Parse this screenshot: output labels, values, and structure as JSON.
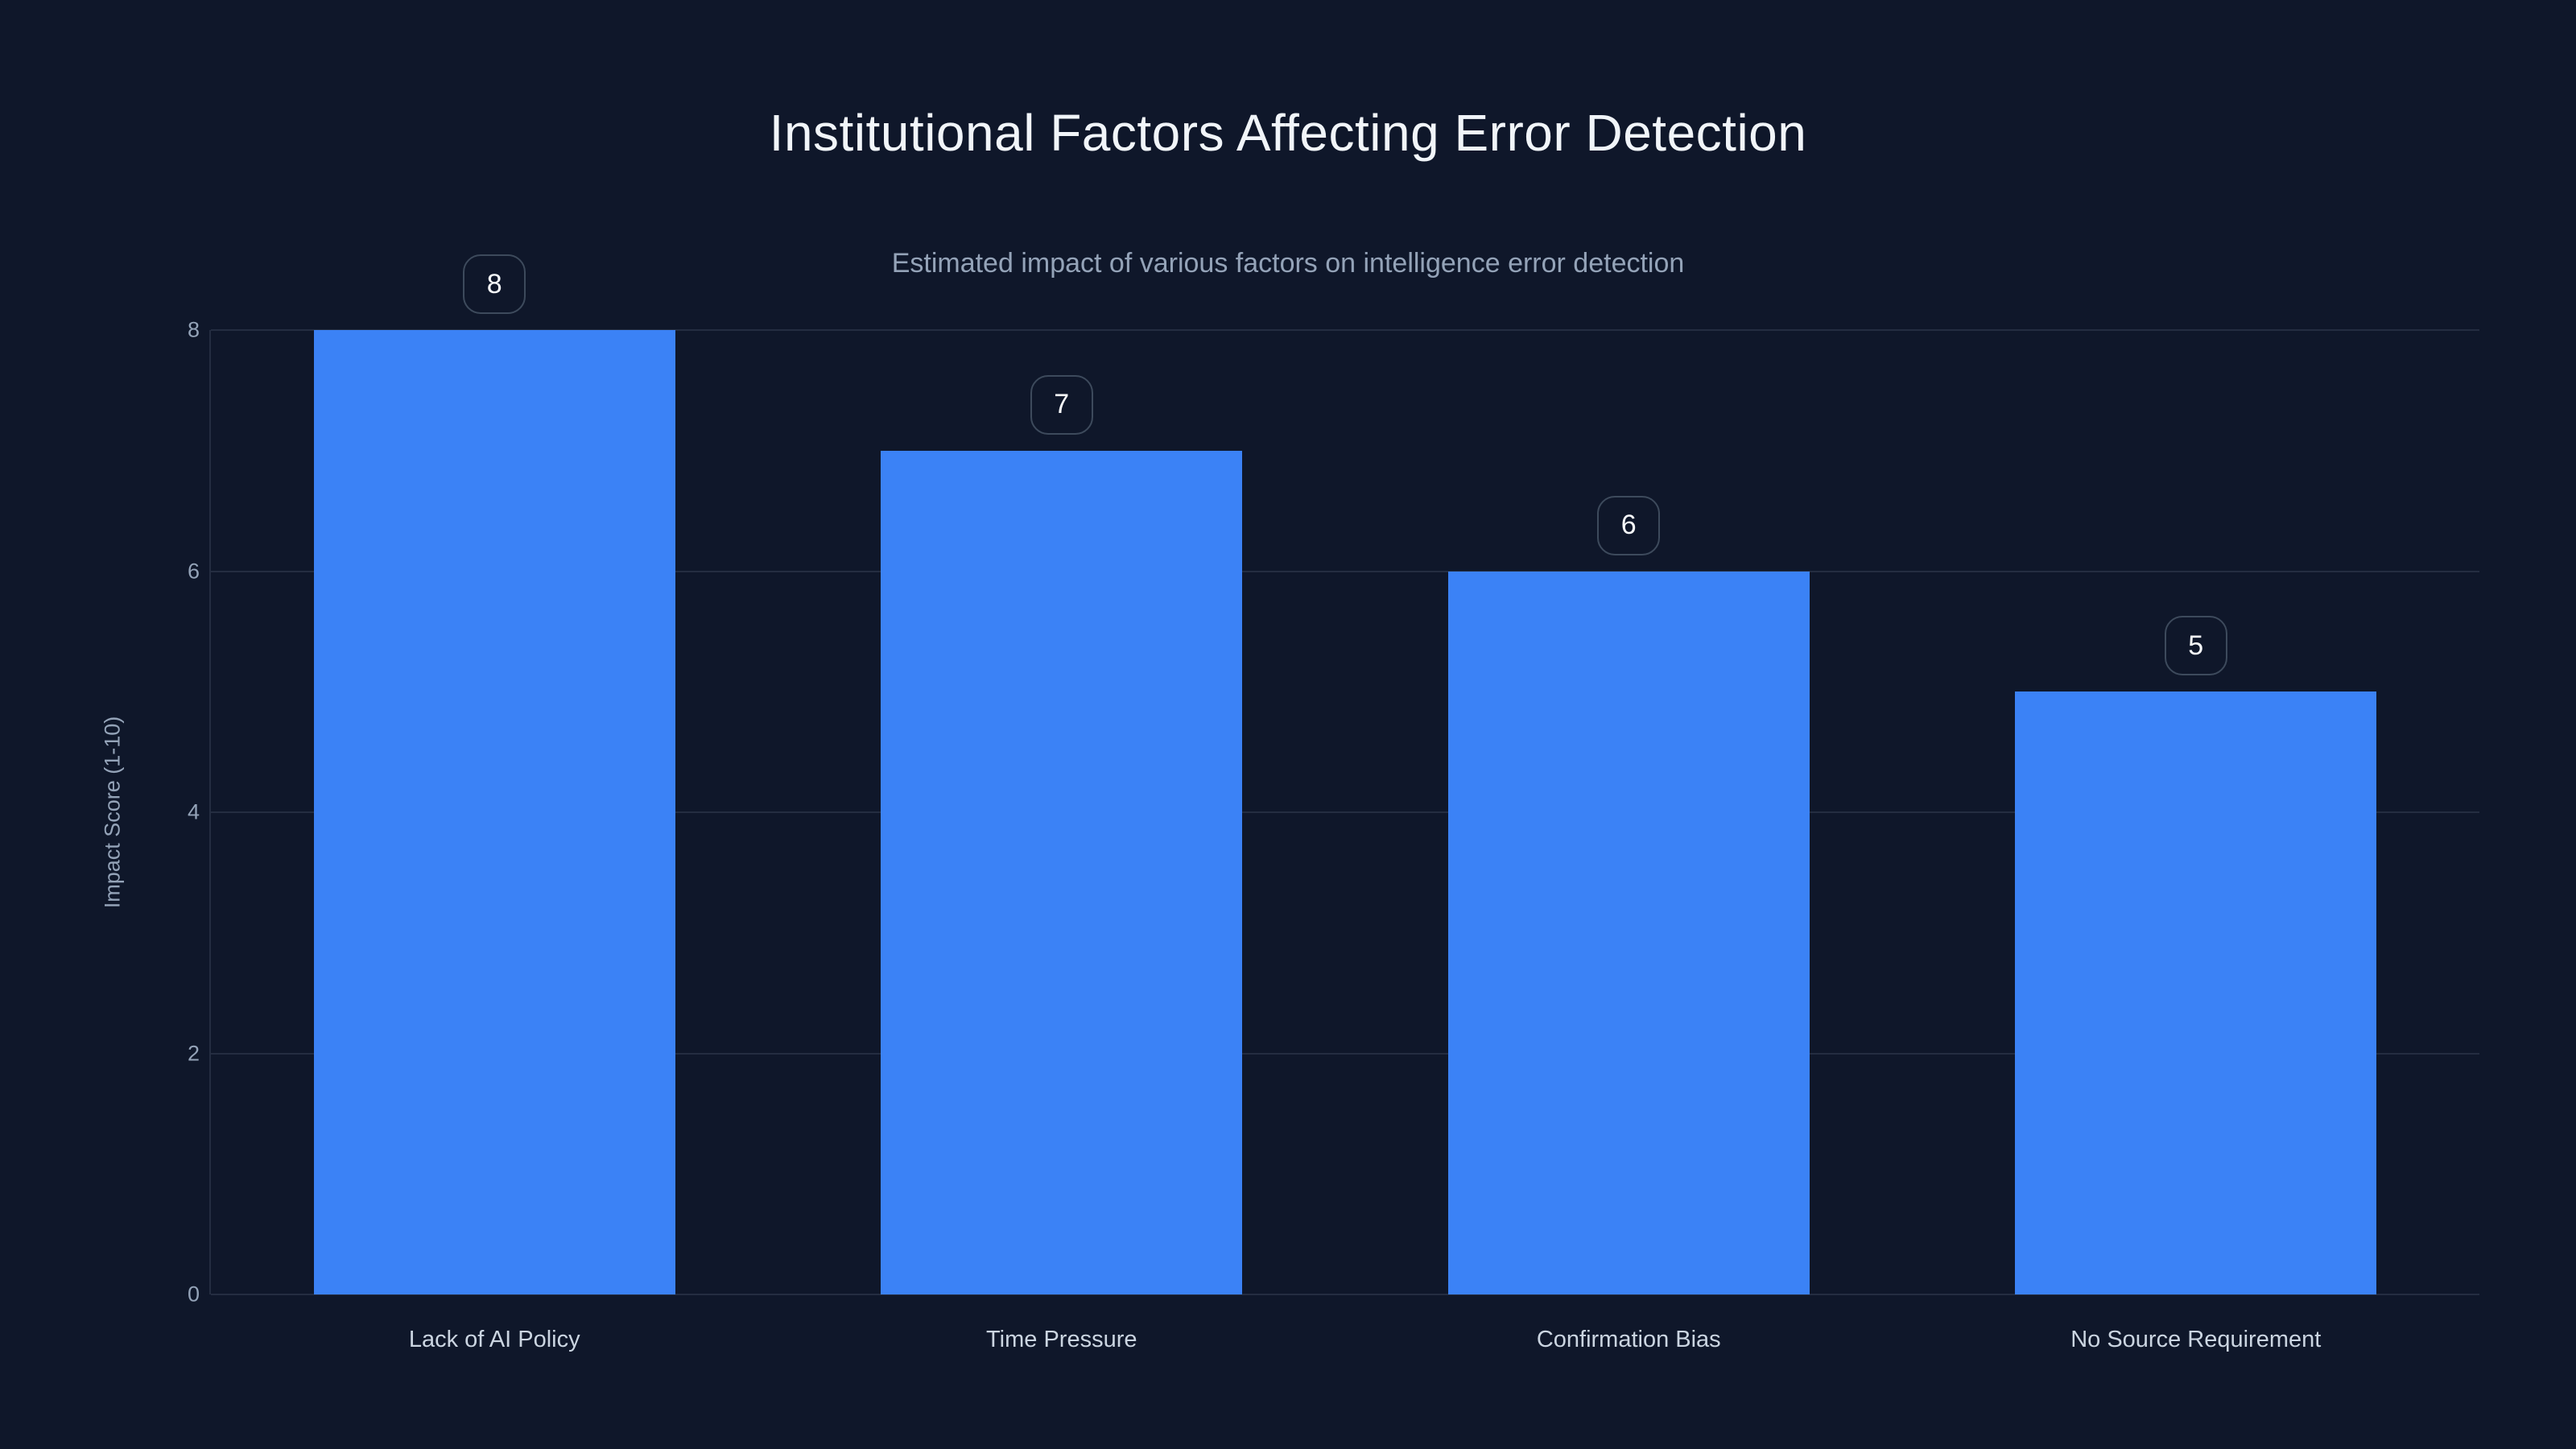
{
  "chart_data": {
    "type": "bar",
    "title": "Institutional Factors Affecting Error Detection",
    "subtitle": "Estimated impact of various factors on intelligence error detection",
    "categories": [
      "Lack of AI Policy",
      "Time Pressure",
      "Confirmation Bias",
      "No Source Requirement"
    ],
    "values": [
      8,
      7,
      6,
      5
    ],
    "xlabel": "",
    "ylabel": "Impact Score (1-10)",
    "ylim": [
      0,
      8
    ],
    "yticks": [
      0,
      2,
      4,
      6,
      8
    ],
    "grid": true,
    "legend": "none",
    "value_labels": [
      "8",
      "7",
      "6",
      "5"
    ]
  },
  "colors": {
    "background": "#0f172a",
    "bar": "#3b82f6",
    "grid": "rgba(148,163,184,0.16)",
    "title_text": "#f1f5f9",
    "subtitle_text": "#94a3b8",
    "tick_text": "#94a3b8",
    "category_text": "#cbd5e1",
    "badge_border": "#3d4a5c",
    "badge_text": "#f8fafc"
  }
}
